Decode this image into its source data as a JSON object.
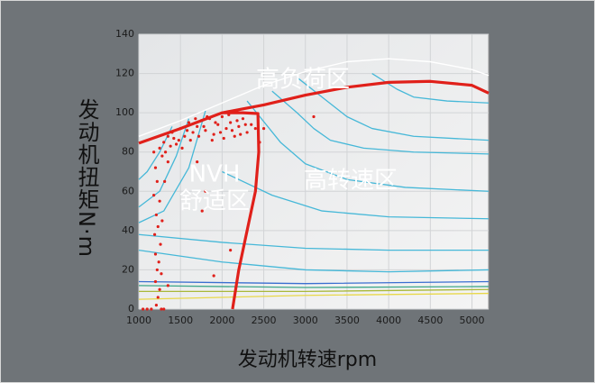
{
  "chart_data": {
    "type": "engine-map",
    "xlabel": "发动机转速rpm",
    "ylabel": "发动机扭矩N·m",
    "annotations": [
      "高负荷区",
      "NVH",
      "舒适区",
      "高转速区"
    ],
    "xlim": [
      1000,
      5200
    ],
    "xticks": [
      1000,
      1500,
      2000,
      2500,
      3000,
      3500,
      4000,
      4500,
      5000
    ],
    "ylim": [
      0,
      140
    ],
    "yticks": [
      0,
      20,
      40,
      60,
      80,
      100,
      120,
      140
    ],
    "grid": true,
    "series": [
      {
        "color": "#ffffff",
        "x": [
          1000,
          1500,
          2000,
          2500,
          3000,
          3500,
          4000,
          4500,
          5000,
          5200
        ],
        "y": [
          88,
          96,
          105,
          114,
          121,
          126,
          127.5,
          126,
          122,
          119
        ]
      },
      {
        "color": "#e0201a",
        "x": [
          1000,
          1500,
          2000,
          2500,
          3000,
          3500,
          4000,
          4500,
          5000,
          5200
        ],
        "y": [
          84.5,
          92,
          100,
          104,
          109,
          113,
          115.5,
          116,
          114,
          110
        ]
      },
      {
        "color": "#e0201a",
        "x": [
          2000,
          2250,
          2430,
          2440,
          2400,
          2300,
          2200,
          2125
        ],
        "y": [
          100,
          100,
          99.6,
          80,
          60,
          40,
          20,
          0
        ]
      }
    ],
    "contours": [
      {
        "color": "#46b8d8",
        "x": [
          1400,
          1250,
          1100,
          1000
        ],
        "y": [
          93,
          80,
          70,
          66
        ]
      },
      {
        "color": "#46b8d8",
        "x": [
          1600,
          1450,
          1250,
          1000
        ],
        "y": [
          97,
          78,
          60,
          52
        ]
      },
      {
        "color": "#46b8d8",
        "x": [
          1800,
          1600,
          1300,
          1000
        ],
        "y": [
          101,
          72,
          50,
          44
        ]
      },
      {
        "color": "#46b8d8",
        "x": [
          3800,
          4100,
          4300,
          4700,
          5200
        ],
        "y": [
          120,
          112,
          108,
          106,
          105
        ]
      },
      {
        "color": "#46b8d8",
        "x": [
          2900,
          3200,
          3500,
          3800,
          4300,
          5200
        ],
        "y": [
          118,
          108,
          98,
          92,
          88,
          86
        ]
      },
      {
        "color": "#46b8d8",
        "x": [
          2600,
          2900,
          3100,
          3300,
          3700,
          4300,
          5200
        ],
        "y": [
          111,
          100,
          92,
          86,
          82,
          80,
          79
        ]
      },
      {
        "color": "#46b8d8",
        "x": [
          2300,
          2700,
          3000,
          3500,
          4200,
          5200
        ],
        "y": [
          106,
          85,
          74,
          66,
          62,
          60
        ]
      },
      {
        "color": "#46b8d8",
        "x": [
          2000,
          2600,
          3200,
          4000,
          5200
        ],
        "y": [
          70,
          58,
          50,
          47,
          46
        ]
      },
      {
        "color": "#46b8d8",
        "x": [
          1000,
          2000,
          3000,
          4000,
          5200
        ],
        "y": [
          38,
          34,
          31,
          30,
          30
        ]
      },
      {
        "color": "#46b8d8",
        "x": [
          1000,
          2000,
          3000,
          4000,
          5200
        ],
        "y": [
          30,
          24,
          20,
          19,
          20
        ]
      },
      {
        "color": "#3a6fd0",
        "x": [
          1000,
          3000,
          5200
        ],
        "y": [
          14,
          13,
          14
        ]
      },
      {
        "color": "#3fa88a",
        "x": [
          1000,
          3000,
          5200
        ],
        "y": [
          12,
          11,
          11.5
        ]
      },
      {
        "color": "#a9b83a",
        "x": [
          1000,
          3000,
          5200
        ],
        "y": [
          9,
          9,
          10
        ]
      },
      {
        "color": "#e8d84a",
        "x": [
          1000,
          3000,
          5200
        ],
        "y": [
          5,
          7,
          8
        ]
      }
    ],
    "points": {
      "color": "#e0201a",
      "x": [
        1300,
        1350,
        1400,
        1450,
        1500,
        1550,
        1600,
        1650,
        1700,
        1750,
        1800,
        1850,
        1900,
        1950,
        2000,
        2050,
        2100,
        2150,
        2200,
        2250,
        2300,
        2350,
        1250,
        1280,
        1320,
        1380,
        1420,
        1480,
        1520,
        1580,
        1620,
        1680,
        1720,
        1780,
        1820,
        1880,
        1920,
        1980,
        2020,
        2080,
        2120,
        2180,
        2220,
        2280,
        2400,
        3100,
        2500,
        1700,
        1800,
        1760,
        1900,
        2100,
        2450,
        1200,
        1220,
        1180,
        1250,
        1210,
        1230,
        1190,
        1260,
        1200,
        1240,
        1220,
        1270,
        1200,
        1250,
        1230,
        1210,
        1270,
        1150,
        1100,
        1050,
        1300,
        1350,
        1280,
        1310,
        1180,
        1350
      ],
      "y": [
        85,
        88,
        90,
        84,
        92,
        88,
        95,
        90,
        93,
        96,
        91,
        97,
        89,
        94,
        98,
        92,
        95,
        88,
        93,
        97,
        90,
        94,
        82,
        78,
        80,
        83,
        87,
        86,
        82,
        91,
        86,
        97,
        88,
        93,
        98,
        86,
        95,
        90,
        87,
        99,
        91,
        96,
        89,
        94,
        92,
        98,
        92,
        75,
        60,
        50,
        17,
        30,
        85,
        72,
        65,
        58,
        55,
        48,
        42,
        38,
        33,
        28,
        24,
        20,
        18,
        14,
        10,
        6,
        2,
        0,
        0,
        0,
        0,
        0,
        12,
        45,
        65,
        80,
        75
      ]
    }
  }
}
